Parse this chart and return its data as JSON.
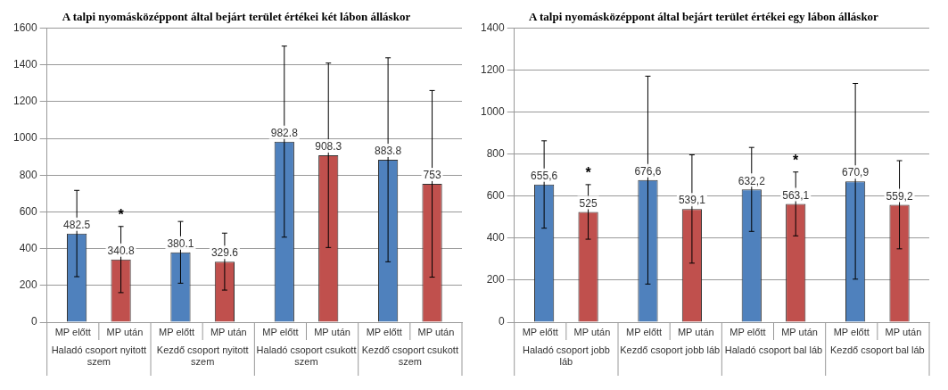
{
  "chart_data": [
    {
      "type": "bar",
      "title": "A talpi nyomásközéppont által bejárt terület értékei két lábon álláskor",
      "categories": [
        "Haladó csoport nyitott szem",
        "Kezdő csoport nyitott szem",
        "Haladó csoport csukott szem",
        "Kezdő csoport csukott szem"
      ],
      "series": [
        {
          "name": "MP előtt",
          "color": "#4f81bd",
          "values": [
            482.5,
            380.1,
            982.8,
            883.8
          ],
          "errors": [
            235,
            168,
            520,
            555
          ]
        },
        {
          "name": "MP után",
          "color": "#c0504d",
          "values": [
            340.8,
            329.6,
            908.3,
            753
          ],
          "errors": [
            180,
            155,
            502,
            508
          ]
        }
      ],
      "ylim": [
        0,
        1600
      ],
      "yticks": [
        0,
        200,
        400,
        600,
        800,
        1000,
        1200,
        1400,
        1600
      ],
      "grid": "y",
      "data_labels": true,
      "legend": false,
      "annotations": [
        "*"
      ]
    },
    {
      "type": "bar",
      "title": "A talpi nyomásközéppont által bejárt terület értékei egy lábon álláskor",
      "categories": [
        "Haladó csoport jobb láb",
        "Kezdő csoport jobb láb",
        "Haladó csoport bal láb",
        "Kezdő csoport bal láb"
      ],
      "series": [
        {
          "name": "MP előtt",
          "color": "#4f81bd",
          "values": [
            655.6,
            676.6,
            632.2,
            670.9
          ],
          "errors": [
            208,
            495,
            200,
            466
          ],
          "value_labels": [
            "655,6",
            "676,6",
            "632,2",
            "670,9"
          ]
        },
        {
          "name": "MP után",
          "color": "#c0504d",
          "values": [
            525,
            539.1,
            563.1,
            559.2
          ],
          "errors": [
            130,
            258,
            152,
            210
          ],
          "value_labels": [
            "525",
            "539,1",
            "563,1",
            "559,2"
          ]
        }
      ],
      "ylim": [
        0,
        1400
      ],
      "yticks": [
        0,
        200,
        400,
        600,
        800,
        1000,
        1200,
        1400
      ],
      "grid": "y",
      "legend": false,
      "annotations": [
        "*",
        "*"
      ]
    }
  ]
}
